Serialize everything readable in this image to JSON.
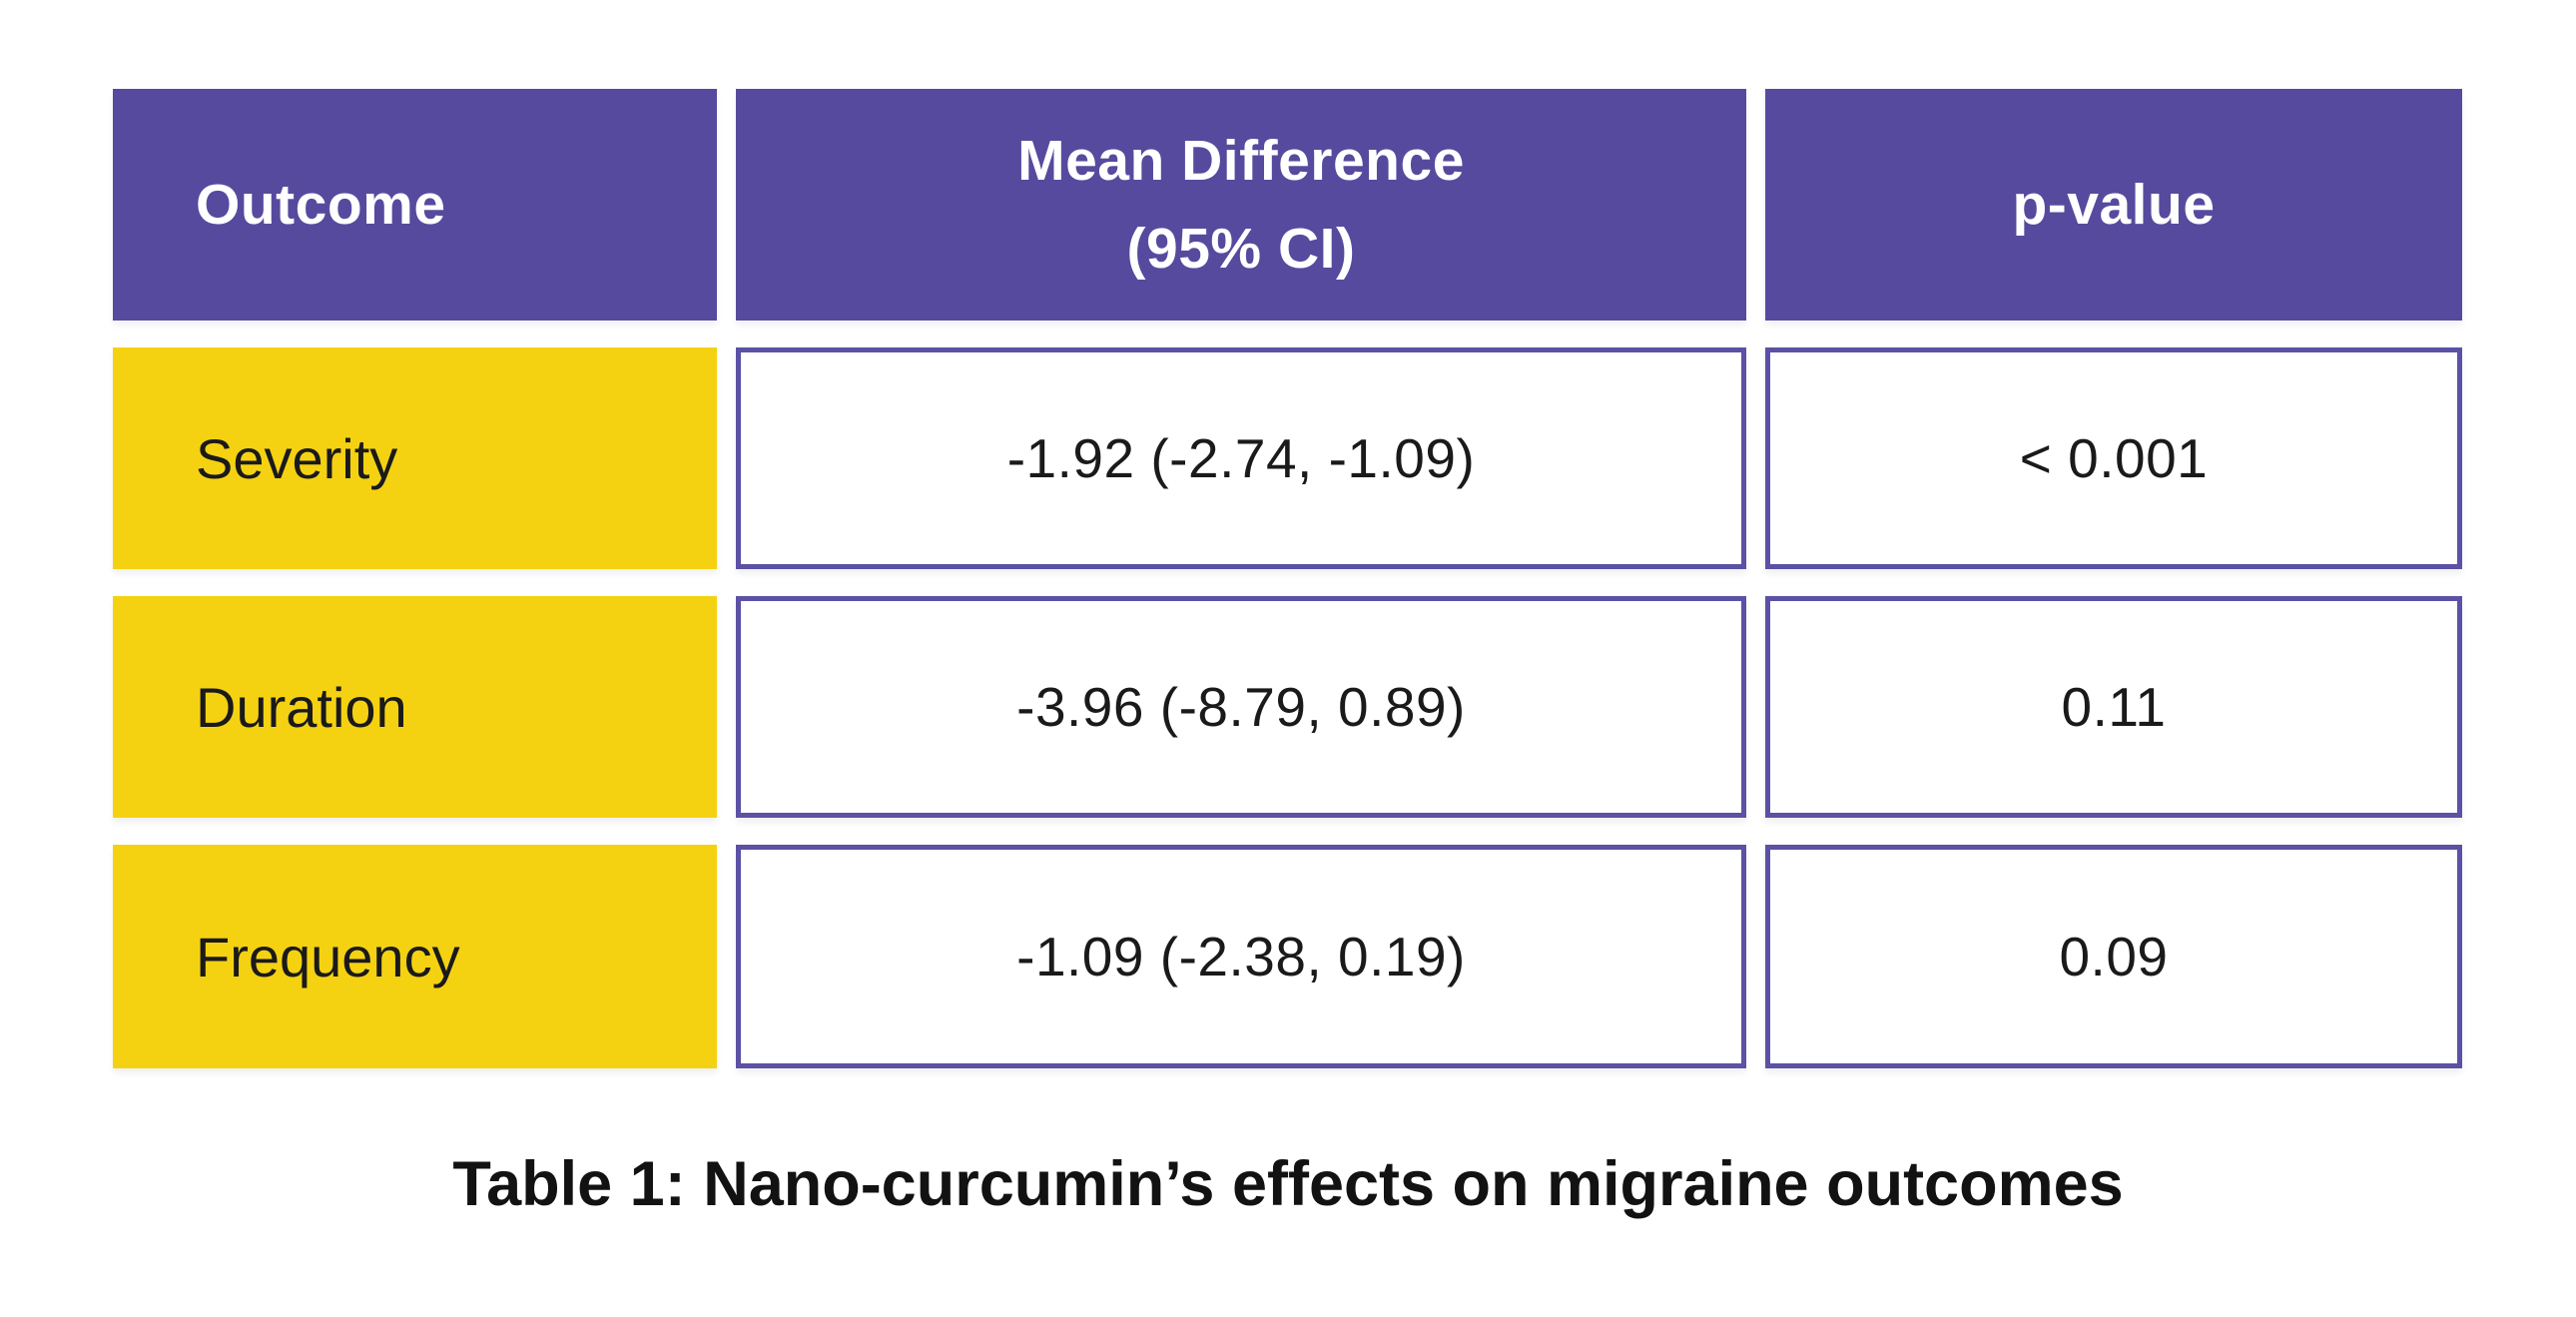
{
  "header": {
    "outcome": "Outcome",
    "mean_difference_line1": "Mean Difference",
    "mean_difference_line2": "(95% CI)",
    "p_value": "p-value"
  },
  "chart_data": {
    "type": "table",
    "title": "Table 1: Nano-curcumin’s effects on migraine outcomes",
    "columns": [
      "Outcome",
      "Mean Difference (95% CI)",
      "p-value"
    ],
    "rows": [
      [
        "Severity",
        "-1.92 (-2.74, -1.09)",
        "< 0.001"
      ],
      [
        "Duration",
        "-3.96 (-8.79, 0.89)",
        "0.11"
      ],
      [
        "Frequency",
        "-1.09 (-2.38, 0.19)",
        "0.09"
      ]
    ]
  },
  "caption": "Table 1: Nano-curcumin’s effects on migraine outcomes",
  "colors": {
    "page_bg": "#FFFFFF",
    "header_bg": "#564A9E",
    "header_text": "#FFFFFF",
    "row_label_bg": "#F5D211",
    "cell_border": "#5B51A5",
    "body_text": "#1A1A1A",
    "caption_text": "#121212"
  }
}
